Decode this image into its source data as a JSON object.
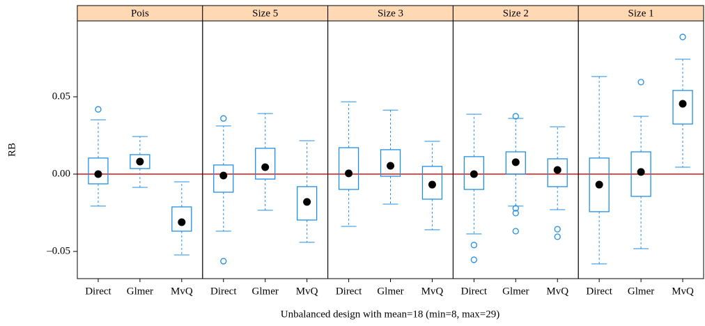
{
  "chart_data": {
    "type": "box",
    "xlabel": "Unbalanced design with mean=18 (min=8, max=29)",
    "ylabel": "RB",
    "categories": [
      "Direct",
      "Glmer",
      "MvQ"
    ],
    "ylim": [
      -0.0676,
      0.0991
    ],
    "yticks": [
      {
        "value": -0.05,
        "label": "–0.05"
      },
      {
        "value": 0,
        "label": "0.00"
      },
      {
        "value": 0.05,
        "label": "0.05"
      }
    ],
    "reference_line": 0,
    "reference_color": "#d40000",
    "color": "#1f8ee6",
    "strip_color": "#ffd9b3",
    "panels": [
      {
        "name": "Pois",
        "boxes": [
          {
            "low": -0.0207,
            "q1": -0.0063,
            "median": 0.0,
            "q3": 0.0104,
            "high": 0.0351,
            "outliers": [
              0.0419
            ]
          },
          {
            "low": -0.0086,
            "q1": 0.0036,
            "median": 0.0081,
            "q3": 0.0126,
            "high": 0.0243
          },
          {
            "low": -0.0523,
            "q1": -0.0369,
            "median": -0.0311,
            "q3": -0.0212,
            "high": -0.005
          }
        ]
      },
      {
        "name": "Size 5",
        "boxes": [
          {
            "low": -0.0369,
            "q1": -0.0117,
            "median": -0.0009,
            "q3": 0.0059,
            "high": 0.0311,
            "outliers": [
              0.036,
              -0.0563
            ]
          },
          {
            "low": -0.0234,
            "q1": -0.0032,
            "median": 0.0045,
            "q3": 0.0167,
            "high": 0.0392
          },
          {
            "low": -0.0441,
            "q1": -0.0297,
            "median": -0.018,
            "q3": -0.0081,
            "high": 0.0216
          }
        ]
      },
      {
        "name": "Size 3",
        "boxes": [
          {
            "low": -0.0338,
            "q1": -0.0099,
            "median": 0.0005,
            "q3": 0.0171,
            "high": 0.0468
          },
          {
            "low": -0.0194,
            "q1": -0.0014,
            "median": 0.0054,
            "q3": 0.0158,
            "high": 0.0414
          },
          {
            "low": -0.036,
            "q1": -0.0162,
            "median": -0.0068,
            "q3": 0.005,
            "high": 0.0212
          }
        ]
      },
      {
        "name": "Size 2",
        "boxes": [
          {
            "low": -0.0387,
            "q1": -0.0099,
            "median": 0.0,
            "q3": 0.0113,
            "high": 0.0387,
            "outliers": [
              -0.0459,
              -0.0554
            ]
          },
          {
            "low": -0.0207,
            "q1": 0.0,
            "median": 0.0077,
            "q3": 0.0144,
            "high": 0.036,
            "outliers": [
              0.0374,
              -0.0221,
              -0.0252,
              -0.0369
            ]
          },
          {
            "low": -0.023,
            "q1": -0.0081,
            "median": 0.0027,
            "q3": 0.0099,
            "high": 0.0306,
            "outliers": [
              -0.0356,
              -0.0405
            ]
          }
        ]
      },
      {
        "name": "Size 1",
        "boxes": [
          {
            "low": -0.0581,
            "q1": -0.0243,
            "median": -0.0068,
            "q3": 0.0104,
            "high": 0.0631
          },
          {
            "low": -0.0482,
            "q1": -0.0144,
            "median": 0.0014,
            "q3": 0.0144,
            "high": 0.0374,
            "outliers": [
              0.0595
            ]
          },
          {
            "low": 0.0045,
            "q1": 0.0324,
            "median": 0.0455,
            "q3": 0.0541,
            "high": 0.0743,
            "outliers": [
              0.0887
            ]
          }
        ]
      }
    ]
  }
}
